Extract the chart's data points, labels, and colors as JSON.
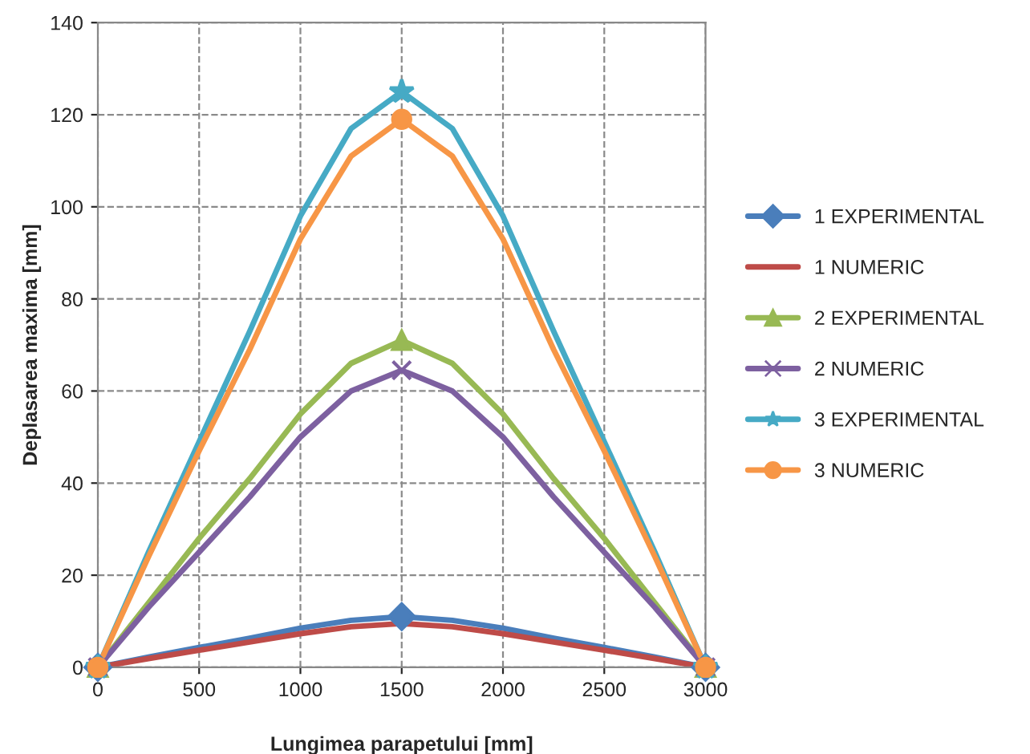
{
  "chart_data": {
    "type": "line",
    "xlabel": "Lungimea parapetului [mm]",
    "ylabel": "Deplasarea maxima [mm]",
    "x": [
      0,
      250,
      500,
      750,
      1000,
      1250,
      1500,
      1750,
      2000,
      2250,
      2500,
      2750,
      3000
    ],
    "series": [
      {
        "name": "1 EXPERIMENTAL",
        "color": "#4a7ebb",
        "values": [
          0,
          2.2,
          4.3,
          6.3,
          8.5,
          10.2,
          11,
          10.2,
          8.5,
          6.3,
          4.3,
          2.2,
          0
        ]
      },
      {
        "type": "scatter",
        "color": "#4a7ebb",
        "marker": "diamond",
        "x": [
          0,
          1500,
          3000
        ],
        "values": [
          0,
          11,
          0
        ]
      },
      {
        "name": "1 NUMERIC",
        "color": "#be4b48",
        "values": [
          0,
          1.9,
          3.7,
          5.5,
          7.3,
          8.8,
          9.5,
          8.8,
          7.3,
          5.5,
          3.7,
          1.9,
          0
        ]
      },
      {
        "name": "2 EXPERIMENTAL",
        "color": "#98b954",
        "values": [
          0,
          14,
          28,
          41,
          55,
          66,
          71,
          66,
          55,
          41,
          28,
          14,
          0
        ]
      },
      {
        "type": "scatter",
        "color": "#98b954",
        "marker": "triangle",
        "x": [
          0,
          1500,
          3000
        ],
        "values": [
          0,
          71,
          0
        ]
      },
      {
        "name": "2 NUMERIC",
        "color": "#7d60a0",
        "values": [
          0,
          13,
          25,
          37,
          50,
          60,
          64.5,
          60,
          50,
          37,
          25,
          13,
          0
        ]
      },
      {
        "type": "scatter",
        "color": "#7d60a0",
        "marker": "cross",
        "x": [
          0,
          1500,
          3000
        ],
        "values": [
          0,
          64.5,
          0
        ]
      },
      {
        "name": "3 EXPERIMENTAL",
        "color": "#46aac5",
        "values": [
          0,
          25,
          49,
          73,
          98,
          117,
          125,
          117,
          98,
          73,
          49,
          25,
          0
        ]
      },
      {
        "type": "scatter",
        "color": "#46aac5",
        "marker": "star",
        "x": [
          0,
          1500,
          3000
        ],
        "values": [
          0,
          125,
          0
        ]
      },
      {
        "name": "3 NUMERIC",
        "color": "#f79646",
        "values": [
          0,
          24,
          47,
          69,
          93,
          111,
          119,
          111,
          93,
          69,
          47,
          24,
          0
        ]
      },
      {
        "type": "scatter",
        "color": "#f79646",
        "marker": "circle",
        "x": [
          0,
          1500,
          3000
        ],
        "values": [
          0,
          119,
          0
        ]
      }
    ],
    "xlim": [
      0,
      3000
    ],
    "xticks": [
      0,
      500,
      1000,
      1500,
      2000,
      2500,
      3000
    ],
    "ylim": [
      0,
      140
    ],
    "yticks": [
      0,
      20,
      40,
      60,
      80,
      100,
      120,
      140
    ],
    "grid": true,
    "legend": "right"
  }
}
